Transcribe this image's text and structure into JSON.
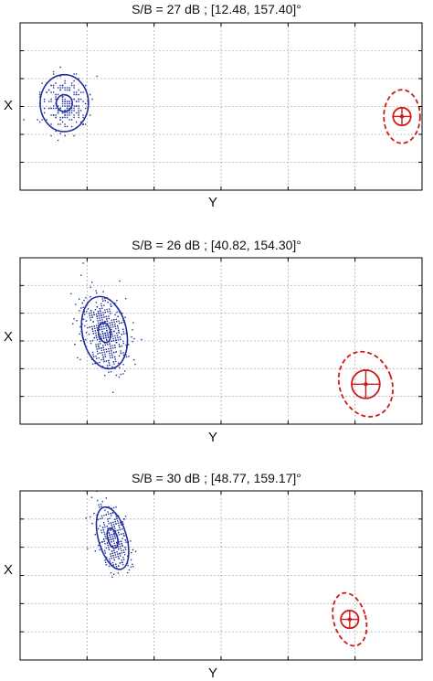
{
  "colors": {
    "blue": "#1f2f9a",
    "red": "#cc1a1a",
    "grid": "#9a9a9a",
    "frame": "#000000"
  },
  "chart_data": [
    {
      "type": "scatter",
      "title": "S/B = 27 dB ; [12.48, 157.40]°",
      "xlabel": "Y",
      "ylabel": "X",
      "grid": true,
      "xlim": [
        0,
        1
      ],
      "ylim": [
        0,
        1
      ],
      "xtick_count": 6,
      "ytick_count": 6,
      "blue_cluster": {
        "center": [
          0.11,
          0.52
        ],
        "rx": 0.06,
        "ry": 0.17,
        "angle": 0,
        "inner_rx": 0.02,
        "inner_ry": 0.05,
        "points": 220
      },
      "red_target": {
        "center": [
          0.95,
          0.44
        ],
        "rx": 0.045,
        "ry": 0.16,
        "angle": 0,
        "inner_r": 0.022
      }
    },
    {
      "type": "scatter",
      "title": "S/B = 26 dB ; [40.82, 154.30]°",
      "xlabel": "Y",
      "ylabel": "X",
      "grid": true,
      "xlim": [
        0,
        1
      ],
      "ylim": [
        0,
        1
      ],
      "xtick_count": 6,
      "ytick_count": 6,
      "blue_cluster": {
        "center": [
          0.21,
          0.55
        ],
        "rx": 0.055,
        "ry": 0.22,
        "angle": -12,
        "inner_rx": 0.015,
        "inner_ry": 0.06,
        "points": 520
      },
      "red_target": {
        "center": [
          0.86,
          0.24
        ],
        "rx": 0.065,
        "ry": 0.2,
        "angle": -20,
        "inner_r": 0.035
      }
    },
    {
      "type": "scatter",
      "title": "S/B = 30 dB ; [48.77, 159.17]°",
      "xlabel": "Y",
      "ylabel": "X",
      "grid": true,
      "xlim": [
        0,
        1
      ],
      "ylim": [
        0,
        1
      ],
      "xtick_count": 6,
      "ytick_count": 6,
      "blue_cluster": {
        "center": [
          0.23,
          0.72
        ],
        "rx": 0.035,
        "ry": 0.19,
        "angle": -16,
        "inner_rx": 0.012,
        "inner_ry": 0.06,
        "points": 360
      },
      "red_target": {
        "center": [
          0.82,
          0.24
        ],
        "rx": 0.04,
        "ry": 0.16,
        "angle": -15,
        "inner_r": 0.022
      }
    }
  ]
}
